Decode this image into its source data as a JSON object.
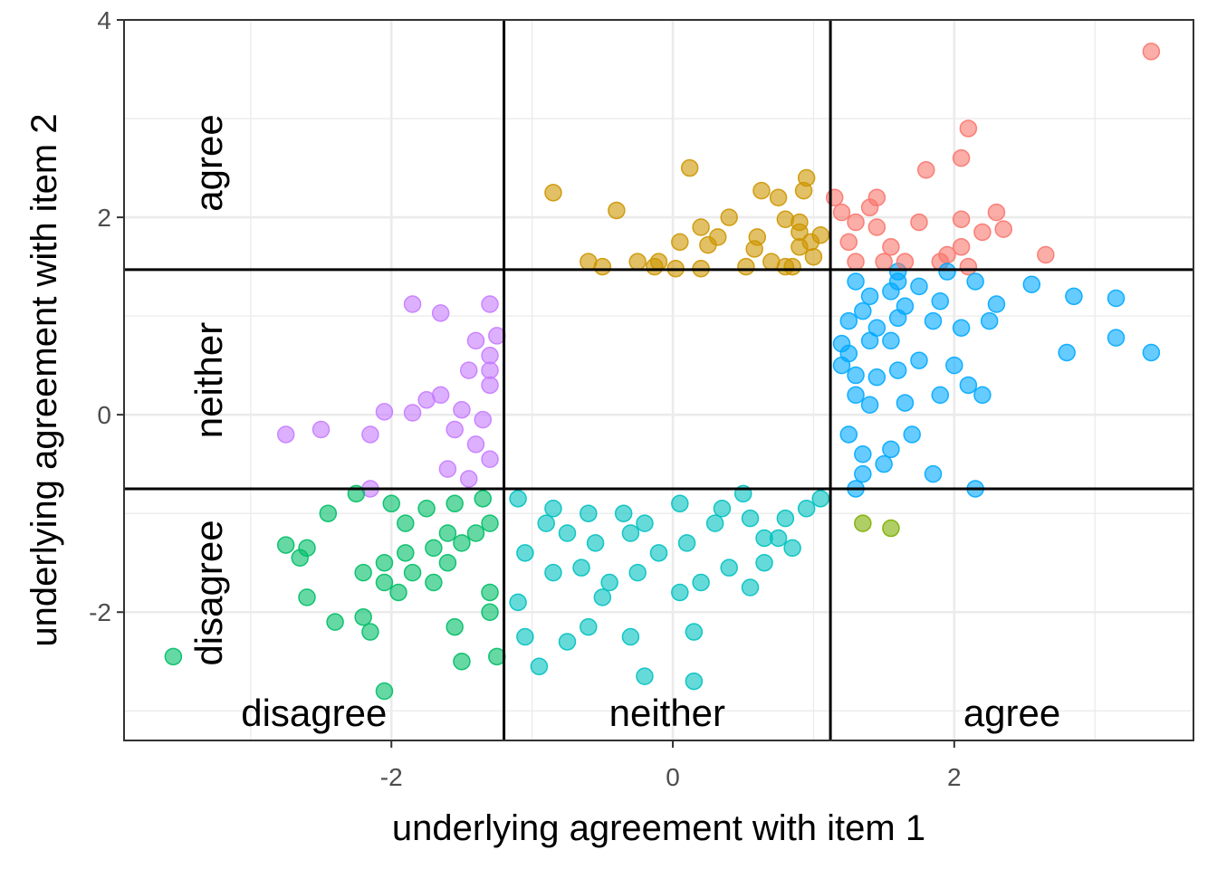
{
  "chart_data": {
    "type": "scatter",
    "title": "",
    "xlabel": "underlying agreement with item 1",
    "ylabel": "underlying agreement with item 2",
    "xlim": [
      -3.9,
      3.7
    ],
    "ylim": [
      -3.3,
      4.0
    ],
    "x_ticks": [
      -2,
      0,
      2
    ],
    "x_tick_labels": [
      "-2",
      "0",
      "2"
    ],
    "y_ticks": [
      -2,
      0,
      2,
      4
    ],
    "y_tick_labels": [
      "-2",
      "0",
      "2",
      "4"
    ],
    "grid": true,
    "legend": "none",
    "thresholds": {
      "x": [
        -1.2,
        1.12
      ],
      "y": [
        -0.75,
        1.47
      ]
    },
    "x_region_labels": [
      "disagree",
      "neither",
      "agree"
    ],
    "y_region_labels": [
      "disagree",
      "neither",
      "agree"
    ],
    "group_colors": {
      "disagree|disagree": "#00BE67",
      "neither|disagree": "#00C1C0",
      "agree|disagree": "#7CAE00",
      "disagree|neither": "#C77CFF",
      "neither|neither": "#FF61C9",
      "agree|neither": "#00A9FF",
      "neither|agree": "#CD9600",
      "agree|agree": "#F8766D"
    },
    "point_alpha": 0.6,
    "points": [
      [
        3.4,
        3.68
      ],
      [
        2.1,
        2.9
      ],
      [
        2.05,
        2.6
      ],
      [
        1.8,
        2.48
      ],
      [
        1.6,
        1.45
      ],
      [
        1.4,
        2.1
      ],
      [
        2.3,
        2.05
      ],
      [
        1.3,
        1.95
      ],
      [
        1.15,
        2.2
      ],
      [
        2.65,
        1.62
      ],
      [
        1.45,
        1.9
      ],
      [
        1.2,
        2.05
      ],
      [
        1.45,
        2.2
      ],
      [
        1.55,
        1.7
      ],
      [
        1.65,
        1.55
      ],
      [
        1.95,
        1.62
      ],
      [
        2.05,
        1.7
      ],
      [
        2.1,
        1.5
      ],
      [
        2.2,
        1.85
      ],
      [
        1.75,
        1.95
      ],
      [
        1.9,
        1.55
      ],
      [
        1.5,
        1.55
      ],
      [
        2.35,
        1.88
      ],
      [
        2.05,
        1.98
      ],
      [
        1.3,
        1.55
      ],
      [
        1.25,
        1.75
      ],
      [
        -0.85,
        2.25
      ],
      [
        0.12,
        2.5
      ],
      [
        -0.4,
        2.07
      ],
      [
        0.2,
        1.9
      ],
      [
        0.4,
        2.0
      ],
      [
        0.63,
        2.27
      ],
      [
        0.75,
        2.2
      ],
      [
        0.8,
        1.98
      ],
      [
        0.9,
        1.95
      ],
      [
        0.95,
        2.4
      ],
      [
        0.93,
        2.27
      ],
      [
        0.32,
        1.8
      ],
      [
        0.05,
        1.75
      ],
      [
        0.25,
        1.72
      ],
      [
        0.58,
        1.68
      ],
      [
        0.85,
        1.5
      ],
      [
        0.9,
        1.85
      ],
      [
        0.98,
        1.75
      ],
      [
        1.05,
        1.82
      ],
      [
        -0.1,
        1.55
      ],
      [
        -0.25,
        1.55
      ],
      [
        -0.5,
        1.5
      ],
      [
        -0.6,
        1.55
      ],
      [
        -0.13,
        1.5
      ],
      [
        0.2,
        1.48
      ],
      [
        0.52,
        1.5
      ],
      [
        0.7,
        1.55
      ],
      [
        0.8,
        1.5
      ],
      [
        0.9,
        1.7
      ],
      [
        1.0,
        1.6
      ],
      [
        0.02,
        1.48
      ],
      [
        0.6,
        1.8
      ],
      [
        1.3,
        1.35
      ],
      [
        1.4,
        1.2
      ],
      [
        1.55,
        1.25
      ],
      [
        1.65,
        1.1
      ],
      [
        1.75,
        1.3
      ],
      [
        1.9,
        1.15
      ],
      [
        1.95,
        1.45
      ],
      [
        2.15,
        1.35
      ],
      [
        2.3,
        1.12
      ],
      [
        2.55,
        1.32
      ],
      [
        2.85,
        1.2
      ],
      [
        3.15,
        1.18
      ],
      [
        2.25,
        0.95
      ],
      [
        2.05,
        0.88
      ],
      [
        1.85,
        0.95
      ],
      [
        1.6,
        0.98
      ],
      [
        1.45,
        0.88
      ],
      [
        1.25,
        0.95
      ],
      [
        1.2,
        0.72
      ],
      [
        1.4,
        0.75
      ],
      [
        1.55,
        0.75
      ],
      [
        1.2,
        0.5
      ],
      [
        1.3,
        0.4
      ],
      [
        1.45,
        0.38
      ],
      [
        1.6,
        0.45
      ],
      [
        1.75,
        0.55
      ],
      [
        2.0,
        0.5
      ],
      [
        2.2,
        0.2
      ],
      [
        2.1,
        0.3
      ],
      [
        1.9,
        0.2
      ],
      [
        1.65,
        0.12
      ],
      [
        1.4,
        0.1
      ],
      [
        1.3,
        0.2
      ],
      [
        2.8,
        0.63
      ],
      [
        3.4,
        0.63
      ],
      [
        3.15,
        0.78
      ],
      [
        1.25,
        -0.2
      ],
      [
        1.35,
        -0.4
      ],
      [
        1.5,
        -0.5
      ],
      [
        1.7,
        -0.2
      ],
      [
        1.35,
        -0.6
      ],
      [
        1.3,
        -0.75
      ],
      [
        2.15,
        -0.75
      ],
      [
        1.85,
        -0.6
      ],
      [
        1.55,
        -0.35
      ],
      [
        1.25,
        0.62
      ],
      [
        1.35,
        1.05
      ],
      [
        1.6,
        1.35
      ],
      [
        -1.3,
        1.12
      ],
      [
        -1.65,
        1.03
      ],
      [
        -1.85,
        1.12
      ],
      [
        -1.4,
        0.75
      ],
      [
        -1.3,
        0.6
      ],
      [
        -1.45,
        0.45
      ],
      [
        -1.3,
        0.3
      ],
      [
        -1.65,
        0.2
      ],
      [
        -1.5,
        0.05
      ],
      [
        -1.85,
        0.02
      ],
      [
        -2.05,
        0.03
      ],
      [
        -1.35,
        -0.05
      ],
      [
        -1.55,
        -0.15
      ],
      [
        -1.4,
        -0.3
      ],
      [
        -1.6,
        -0.55
      ],
      [
        -1.3,
        -0.45
      ],
      [
        -1.45,
        -0.65
      ],
      [
        -2.15,
        -0.2
      ],
      [
        -2.5,
        -0.15
      ],
      [
        -2.75,
        -0.2
      ],
      [
        -1.75,
        0.15
      ],
      [
        -1.3,
        0.45
      ],
      [
        -1.25,
        0.8
      ],
      [
        -3.55,
        -2.45
      ],
      [
        -2.75,
        -1.32
      ],
      [
        -2.65,
        -1.45
      ],
      [
        -2.6,
        -1.35
      ],
      [
        -2.6,
        -1.85
      ],
      [
        -2.4,
        -2.1
      ],
      [
        -2.2,
        -1.6
      ],
      [
        -2.2,
        -2.05
      ],
      [
        -2.15,
        -2.2
      ],
      [
        -2.05,
        -1.7
      ],
      [
        -2.05,
        -1.5
      ],
      [
        -1.9,
        -1.4
      ],
      [
        -1.85,
        -1.6
      ],
      [
        -1.7,
        -1.7
      ],
      [
        -1.6,
        -1.5
      ],
      [
        -1.5,
        -1.3
      ],
      [
        -1.4,
        -1.2
      ],
      [
        -1.3,
        -1.1
      ],
      [
        -1.55,
        -0.9
      ],
      [
        -1.75,
        -0.95
      ],
      [
        -2.0,
        -0.9
      ],
      [
        -2.15,
        -0.75
      ],
      [
        -1.9,
        -1.1
      ],
      [
        -1.7,
        -1.35
      ],
      [
        -1.5,
        -2.5
      ],
      [
        -1.25,
        -2.45
      ],
      [
        -1.3,
        -2.0
      ],
      [
        -1.55,
        -2.15
      ],
      [
        -1.3,
        -1.8
      ],
      [
        -2.05,
        -2.8
      ],
      [
        -1.6,
        -1.2
      ],
      [
        -1.35,
        -0.85
      ],
      [
        -2.45,
        -1.0
      ],
      [
        -2.25,
        -0.8
      ],
      [
        -1.95,
        -1.8
      ],
      [
        -1.1,
        -0.85
      ],
      [
        -0.9,
        -1.1
      ],
      [
        -0.75,
        -1.2
      ],
      [
        -0.55,
        -1.3
      ],
      [
        -0.35,
        -1.0
      ],
      [
        -0.2,
        -1.1
      ],
      [
        0.05,
        -0.9
      ],
      [
        0.3,
        -1.1
      ],
      [
        0.5,
        -0.8
      ],
      [
        0.8,
        -1.05
      ],
      [
        1.05,
        -0.85
      ],
      [
        0.75,
        -1.25
      ],
      [
        0.85,
        -1.35
      ],
      [
        0.65,
        -1.5
      ],
      [
        0.4,
        -1.55
      ],
      [
        0.2,
        -1.7
      ],
      [
        0.05,
        -1.8
      ],
      [
        -0.25,
        -1.6
      ],
      [
        -0.45,
        -1.7
      ],
      [
        -0.65,
        -1.55
      ],
      [
        -0.85,
        -1.6
      ],
      [
        -1.05,
        -1.4
      ],
      [
        -1.1,
        -1.9
      ],
      [
        -1.05,
        -2.25
      ],
      [
        -0.95,
        -2.55
      ],
      [
        -0.75,
        -2.3
      ],
      [
        -0.6,
        -2.15
      ],
      [
        -0.5,
        -1.85
      ],
      [
        -0.3,
        -2.25
      ],
      [
        -0.2,
        -2.65
      ],
      [
        0.15,
        -2.2
      ],
      [
        0.15,
        -2.7
      ],
      [
        0.55,
        -1.75
      ],
      [
        0.65,
        -1.25
      ],
      [
        -0.1,
        -1.4
      ],
      [
        -0.3,
        -1.2
      ],
      [
        0.1,
        -1.3
      ],
      [
        0.35,
        -0.95
      ],
      [
        0.95,
        -0.95
      ],
      [
        0.55,
        -1.05
      ],
      [
        -0.6,
        -1.0
      ],
      [
        -0.85,
        -0.95
      ],
      [
        1.35,
        -1.1
      ],
      [
        1.55,
        -1.15
      ]
    ]
  }
}
